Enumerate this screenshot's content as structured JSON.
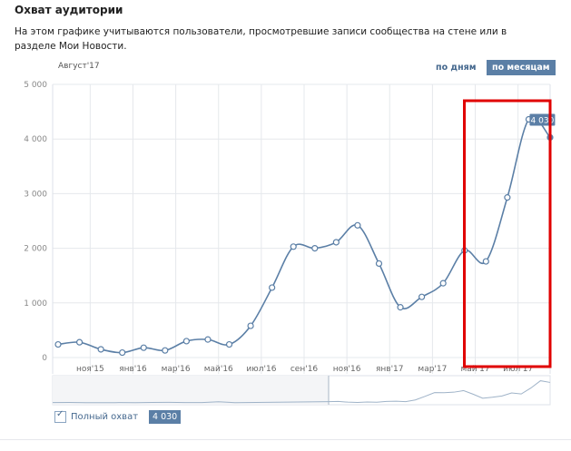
{
  "header": {
    "title": "Охват аудитории",
    "description": "На этом графике учитываются пользователи, просмотревшие записи сообщества на стене или в разделе Мои Новости."
  },
  "controls": {
    "period_label": "Август'17",
    "by_days": "по дням",
    "by_months": "по месяцам"
  },
  "legend": {
    "series_label": "Полный охват",
    "value_badge": "4 030"
  },
  "highlight_tooltip": "4 030",
  "colors": {
    "line": "#5b7fa6",
    "highlight_box": "#e00000",
    "grid": "#e5e8ec",
    "badge": "#5b7fa6"
  },
  "chart_data": {
    "type": "line",
    "y_ticks": [
      "5 000",
      "4 000",
      "3 000",
      "2 000",
      "1 000",
      "0"
    ],
    "y_tick_values": [
      5000,
      4000,
      3000,
      2000,
      1000,
      0
    ],
    "ylim": [
      0,
      5000
    ],
    "x_tick_labels": [
      "ноя'15",
      "янв'16",
      "мар'16",
      "май'16",
      "июл'16",
      "сен'16",
      "ноя'16",
      "янв'17",
      "мар'17",
      "май'17",
      "июл'17"
    ],
    "x_tick_indices": [
      1.5,
      3.5,
      5.5,
      7.5,
      9.5,
      11.5,
      13.5,
      15.5,
      17.5,
      19.5,
      21.5
    ],
    "series": [
      {
        "values": [
          240,
          280,
          150,
          90,
          180,
          130,
          300,
          330,
          240,
          580,
          1280,
          2030,
          2000,
          2110,
          2420,
          1720,
          920,
          1110,
          1360,
          1960,
          1760,
          2930,
          4360,
          4030
        ]
      }
    ],
    "highlighted_range": [
      19.5,
      23
    ]
  }
}
